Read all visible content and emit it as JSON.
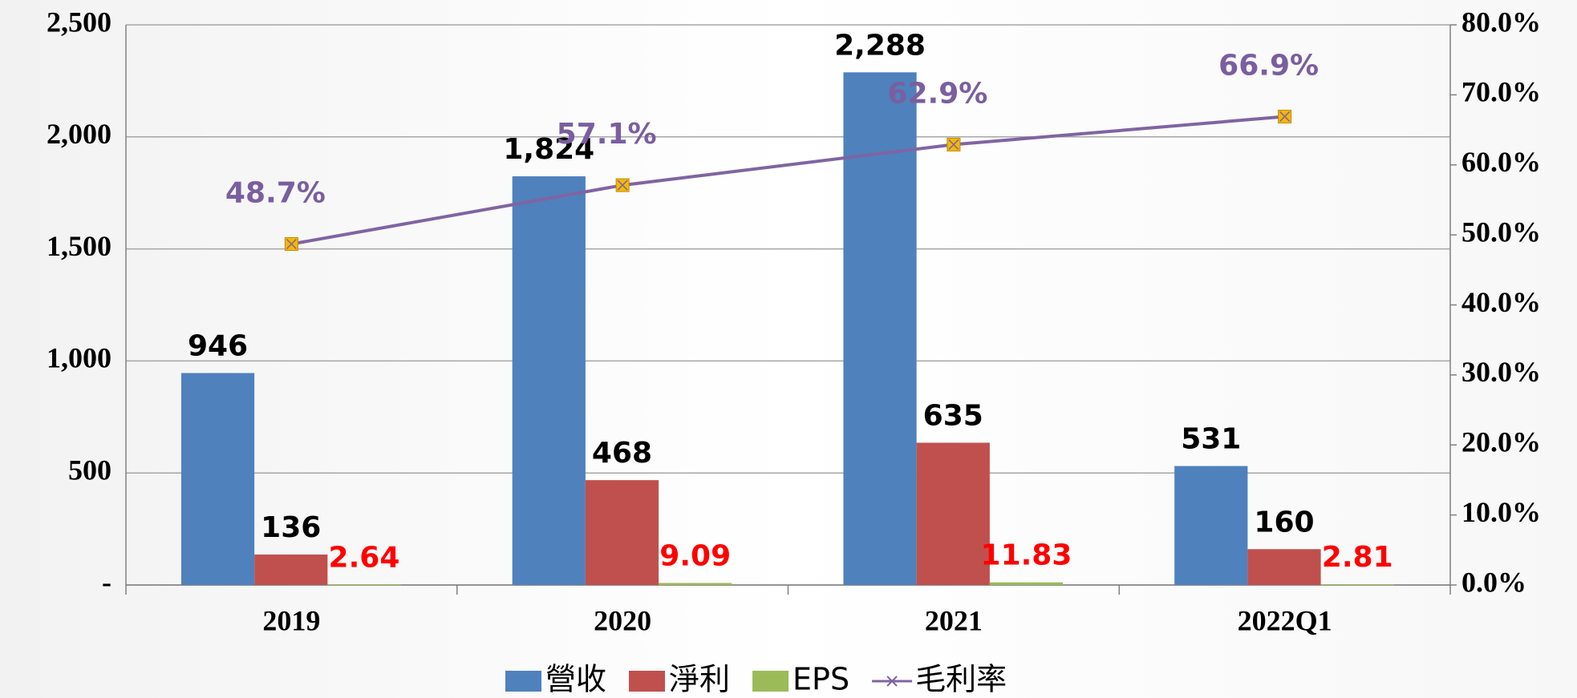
{
  "chart_data": {
    "type": "bar",
    "categories": [
      "2019",
      "2020",
      "2021",
      "2022Q1"
    ],
    "series": [
      {
        "name": "營收",
        "color": "#4f81bd",
        "values": [
          946,
          1824,
          2288,
          531
        ],
        "value_labels": [
          "946",
          "1,824",
          "2,288",
          "531"
        ],
        "label_color": "#000000"
      },
      {
        "name": "淨利",
        "color": "#c0504d",
        "values": [
          136,
          468,
          635,
          160
        ],
        "label_color": "#000000"
      },
      {
        "name": "EPS",
        "color": "#9bbb59",
        "values": [
          2.64,
          9.09,
          11.83,
          2.81
        ],
        "label_color": "#ff0000"
      },
      {
        "name": "毛利率",
        "type": "line",
        "axis": "y2",
        "color": "#8064a2",
        "marker_color": "#f5b800",
        "values": [
          48.7,
          57.1,
          62.9,
          66.9
        ],
        "value_labels": [
          "48.7%",
          "57.1%",
          "62.9%",
          "66.9%"
        ],
        "label_color": "#7a5ea0"
      }
    ],
    "ylim": [
      0,
      2500
    ],
    "yticks": [
      {
        "value": 0,
        "label": "-"
      },
      500,
      {
        "value": 1000,
        "label": "1,000"
      },
      {
        "value": 1500,
        "label": "1,500"
      },
      {
        "value": 2000,
        "label": "2,000"
      },
      {
        "value": 2500,
        "label": "2,500"
      }
    ],
    "y2lim": [
      0,
      80
    ],
    "y2ticks": [
      {
        "value": 0,
        "label": "0.0%"
      },
      {
        "value": 10,
        "label": "10.0%"
      },
      {
        "value": 20,
        "label": "20.0%"
      },
      {
        "value": 30,
        "label": "30.0%"
      },
      {
        "value": 40,
        "label": "40.0%"
      },
      {
        "value": 50,
        "label": "50.0%"
      },
      {
        "value": 60,
        "label": "60.0%"
      },
      {
        "value": 70,
        "label": "70.0%"
      },
      {
        "value": 80,
        "label": "80.0%"
      }
    ],
    "grid": true,
    "legend": "bottom"
  }
}
